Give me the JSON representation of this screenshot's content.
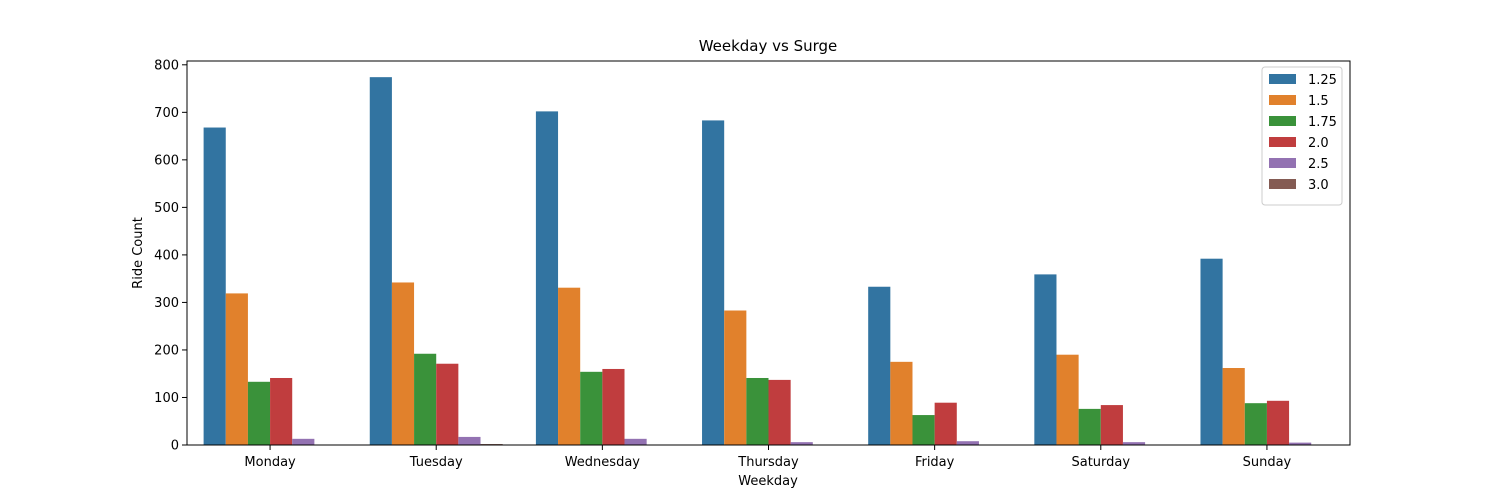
{
  "chart_data": {
    "type": "bar",
    "title": "Weekday vs Surge",
    "xlabel": "Weekday",
    "ylabel": "Ride Count",
    "ylim": [
      0,
      808
    ],
    "yticks": [
      0,
      100,
      200,
      300,
      400,
      500,
      600,
      700,
      800
    ],
    "grid": false,
    "legend_position": "top-right",
    "categories": [
      "Monday",
      "Tuesday",
      "Wednesday",
      "Thursday",
      "Friday",
      "Saturday",
      "Sunday"
    ],
    "series": [
      {
        "name": "1.25",
        "color": "#3274a1",
        "values": [
          668,
          774,
          702,
          683,
          333,
          359,
          392
        ]
      },
      {
        "name": "1.5",
        "color": "#e1812c",
        "values": [
          319,
          342,
          331,
          283,
          175,
          190,
          162
        ]
      },
      {
        "name": "1.75",
        "color": "#3a923a",
        "values": [
          133,
          192,
          154,
          141,
          63,
          76,
          88
        ]
      },
      {
        "name": "2.0",
        "color": "#c03d3e",
        "values": [
          141,
          171,
          160,
          137,
          89,
          84,
          93
        ]
      },
      {
        "name": "2.5",
        "color": "#9372b2",
        "values": [
          13,
          17,
          13,
          6,
          8,
          6,
          5
        ]
      },
      {
        "name": "3.0",
        "color": "#845b53",
        "values": [
          0,
          2,
          1,
          0,
          0,
          1,
          0
        ]
      }
    ]
  }
}
